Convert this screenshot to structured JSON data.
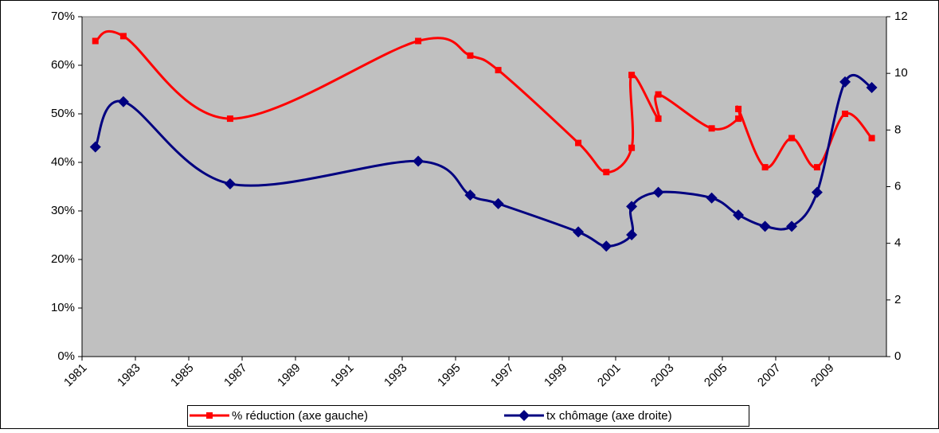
{
  "chart_data": {
    "type": "line",
    "series": [
      {
        "name": "% réduction (axe gauche)",
        "color": "#ff0000",
        "marker": "square",
        "axis": "y",
        "x": [
          1981.5,
          1982.55,
          1986.55,
          1993.6,
          1995.55,
          1996.6,
          1999.6,
          2000.65,
          2001.6,
          2001.6,
          2002.6,
          2002.6,
          2004.6,
          2005.6,
          2005.6,
          2006.6,
          2007.6,
          2008.55,
          2009.6,
          2010.6
        ],
        "values": [
          65,
          66,
          49,
          65,
          62,
          59,
          44,
          38,
          43,
          58,
          49,
          54,
          47,
          49,
          51,
          39,
          45,
          39,
          50,
          45
        ]
      },
      {
        "name": "tx chômage (axe droite)",
        "color": "#000080",
        "marker": "diamond",
        "axis": "y2",
        "x": [
          1981.5,
          1982.55,
          1986.55,
          1993.6,
          1995.55,
          1996.6,
          1999.6,
          2000.65,
          2001.6,
          2001.6,
          2002.6,
          2004.6,
          2005.6,
          2006.6,
          2007.6,
          2008.55,
          2009.6,
          2010.6
        ],
        "values": [
          7.4,
          9.0,
          6.1,
          6.9,
          5.7,
          5.4,
          4.4,
          3.9,
          4.3,
          5.3,
          5.8,
          5.6,
          5.0,
          4.6,
          4.6,
          5.8,
          9.7,
          9.5
        ]
      }
    ],
    "xlim": [
      1981,
      2011.15
    ],
    "xticks": [
      1981,
      1983,
      1985,
      1987,
      1989,
      1991,
      1993,
      1995,
      1997,
      1999,
      2001,
      2003,
      2005,
      2007,
      2009
    ],
    "ylim": [
      0,
      70
    ],
    "yticks": [
      {
        "value": 0,
        "label": "0%"
      },
      {
        "value": 10,
        "label": "10%"
      },
      {
        "value": 20,
        "label": "20%"
      },
      {
        "value": 30,
        "label": "30%"
      },
      {
        "value": 40,
        "label": "40%"
      },
      {
        "value": 50,
        "label": "50%"
      },
      {
        "value": 60,
        "label": "60%"
      },
      {
        "value": 70,
        "label": "70%"
      }
    ],
    "y2lim": [
      0,
      12
    ],
    "y2ticks": [
      0,
      2,
      4,
      6,
      8,
      10,
      12
    ],
    "plot_background": "#c0c0c0",
    "smooth": true,
    "legend": "bottom"
  }
}
